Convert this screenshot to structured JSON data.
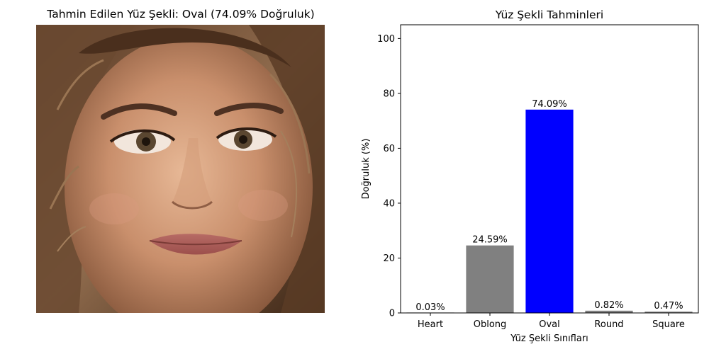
{
  "photo_panel": {
    "title": "Tahmin Edilen Yüz Şekli: Oval (74.09% Doğruluk)",
    "image_description": "face-photo"
  },
  "chart_data": {
    "type": "bar",
    "title": "Yüz Şekli Tahminleri",
    "xlabel": "Yüz Şekli Sınıfları",
    "ylabel": "Doğruluk (%)",
    "categories": [
      "Heart",
      "Oblong",
      "Oval",
      "Round",
      "Square"
    ],
    "values": [
      0.03,
      24.59,
      74.09,
      0.82,
      0.47
    ],
    "value_labels": [
      "0.03%",
      "24.59%",
      "74.09%",
      "0.82%",
      "0.47%"
    ],
    "colors": [
      "#808080",
      "#808080",
      "#0000ff",
      "#808080",
      "#808080"
    ],
    "ylim": [
      0,
      105
    ],
    "yticks": [
      0,
      20,
      40,
      60,
      80,
      100
    ],
    "grid": false,
    "legend": "none"
  }
}
